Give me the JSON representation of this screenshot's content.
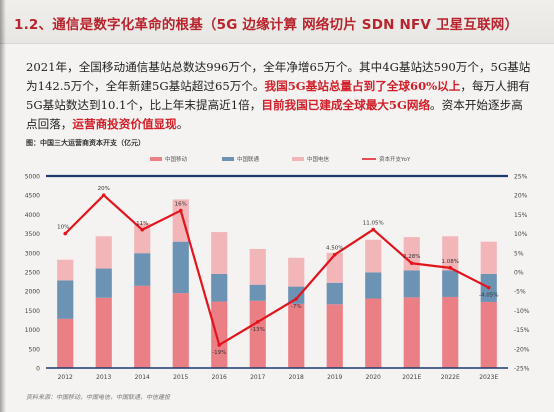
{
  "slide": {
    "title": "1.2、通信是数字化革命的根基（5G 边缘计算 网络切片 SDN NFV 卫星互联网）",
    "paragraph": {
      "normal_1": "2021年，全国移动通信基站总数达996万个，全年净增65万个。其中4G基站达590万个，5G基站为142.5万个，全年新建5G基站超过65万个。",
      "red_1": "我国5G基站总量占到了全球60%以上",
      "normal_2": "，每万人拥有5G基站数达到10.1个，比上年末提高近1倍，",
      "red_2": "目前我国已建成全球最大5G网络",
      "normal_3": "。资本开始逐步高点回落，",
      "red_3": "运营商投资价值显现",
      "normal_4": "。"
    },
    "figure_title": "图：中国三大运营商资本开支（亿元）",
    "source": "资料来源：中国移动，中国电信，中国联通，中信建投"
  },
  "chart_data": {
    "type": "bar",
    "stacked": true,
    "categories": [
      "2012",
      "2013",
      "2014",
      "2015",
      "2016",
      "2017",
      "2018",
      "2019",
      "2020",
      "2021E",
      "2022E",
      "2023E"
    ],
    "series": [
      {
        "name": "中国移动",
        "values": [
          1280,
          1830,
          2140,
          1950,
          1730,
          1750,
          1670,
          1660,
          1810,
          1840,
          1850,
          1720
        ],
        "color": "#ea7f86"
      },
      {
        "name": "中国联通",
        "values": [
          1000,
          760,
          850,
          1340,
          720,
          420,
          450,
          560,
          680,
          700,
          690,
          730
        ],
        "color": "#6c93b4"
      },
      {
        "name": "中国电信",
        "values": [
          540,
          840,
          780,
          1100,
          1090,
          930,
          750,
          780,
          850,
          870,
          890,
          840
        ],
        "color": "#f2b6b9"
      }
    ],
    "line": {
      "name": "资本开支YoY",
      "values": [
        10,
        20,
        11,
        16,
        -19,
        -13,
        -7,
        4.5,
        11.05,
        2.28,
        1.08,
        -4.05
      ],
      "labels": [
        "10%",
        "20%",
        "11%",
        "16%",
        "-19%",
        "-13%",
        "-7%",
        "4.50%",
        "11.05%",
        "2.28%",
        "1.08%",
        "-4.05%"
      ],
      "color": "#e3141c"
    },
    "ylim_left": [
      0,
      5000
    ],
    "yticks_left": [
      0,
      500,
      1000,
      1500,
      2000,
      2500,
      3000,
      3500,
      4000,
      4500,
      5000
    ],
    "ylim_right": [
      -25,
      25
    ],
    "yticks_right": [
      "25%",
      "20%",
      "15%",
      "10%",
      "5%",
      "0%",
      "-5%",
      "-10%",
      "-15%",
      "-20%",
      "-25%"
    ],
    "legend_position": "top",
    "grid": false
  }
}
